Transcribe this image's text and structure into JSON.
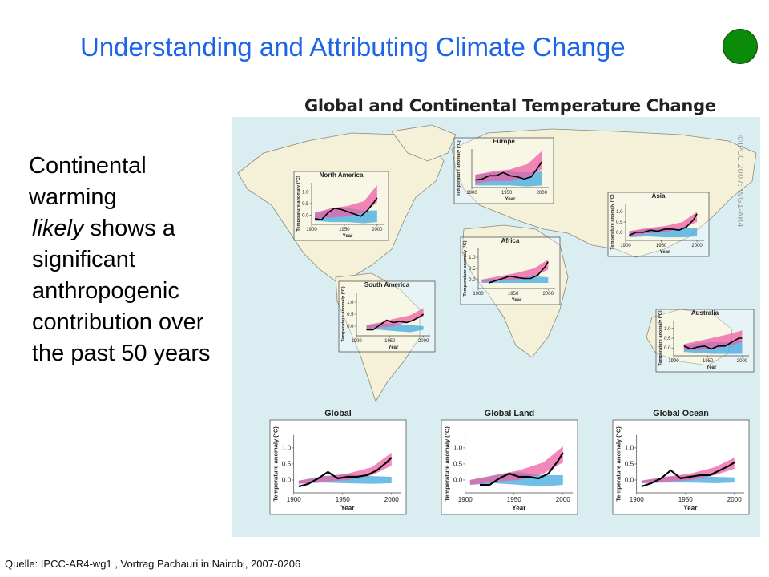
{
  "slide": {
    "title": "Understanding and Attributing Climate Change",
    "bullet_line1": "Continental warming",
    "bullet_emph": "likely",
    "bullet_rest": " shows a significant anthropogenic contribution over the past 50 years",
    "source": "Quelle:  IPCC-AR4-wg1 , Vortrag Pachauri  in Nairobi, 2007-0206",
    "status_color": "#0a8c0a"
  },
  "figure": {
    "title": "Global and Continental Temperature Change",
    "watermark": "©IPCC 2007: WG1-AR4",
    "colors": {
      "ocean": "#daeef2",
      "land": "#f4f1d8",
      "natural_band": "#3fa8e0",
      "anthropogenic_band": "#ee5fa4",
      "observed": "#000000"
    }
  },
  "chart_data": [
    {
      "type": "line",
      "title": "North America",
      "ylabel": "Temperature anomaly (°C)",
      "xlabel": "Year",
      "xticks": [
        "1900",
        "1950",
        "2000"
      ],
      "yticks": [
        "0.0",
        "0.5",
        "1.0"
      ],
      "xlim": [
        1900,
        2010
      ],
      "ylim": [
        -0.4,
        1.4
      ],
      "observed": {
        "x": [
          1905,
          1915,
          1925,
          1935,
          1945,
          1955,
          1965,
          1975,
          1985,
          1995,
          2000
        ],
        "y": [
          -0.15,
          -0.2,
          0.1,
          0.3,
          0.25,
          0.15,
          0.05,
          -0.05,
          0.2,
          0.55,
          0.75
        ]
      },
      "anthro_band": {
        "x": [
          1905,
          1930,
          1955,
          1980,
          2000
        ],
        "low": [
          -0.15,
          -0.1,
          -0.05,
          0.1,
          0.55
        ],
        "high": [
          0.1,
          0.3,
          0.4,
          0.6,
          1.3
        ]
      },
      "natural_band": {
        "x": [
          1905,
          1930,
          1955,
          1980,
          2000
        ],
        "low": [
          -0.25,
          -0.3,
          -0.3,
          -0.35,
          -0.3
        ],
        "high": [
          0.1,
          0.25,
          0.3,
          0.2,
          0.2
        ]
      }
    },
    {
      "type": "line",
      "title": "Europe",
      "ylabel": "Temperature anomaly (°C)",
      "xlabel": "Year",
      "xticks": [
        "1900",
        "1950",
        "2000"
      ],
      "yticks": [],
      "xlim": [
        1900,
        2010
      ],
      "ylim": [
        -0.4,
        1.4
      ],
      "observed": {
        "x": [
          1905,
          1915,
          1925,
          1935,
          1945,
          1955,
          1965,
          1975,
          1985,
          1995,
          2000
        ],
        "y": [
          -0.05,
          0.0,
          0.15,
          0.15,
          0.3,
          0.15,
          0.1,
          0.0,
          0.1,
          0.55,
          0.8
        ]
      },
      "anthro_band": {
        "x": [
          1905,
          1930,
          1955,
          1980,
          2000
        ],
        "low": [
          -0.2,
          -0.1,
          -0.1,
          0.1,
          0.45
        ],
        "high": [
          0.2,
          0.35,
          0.45,
          0.7,
          1.3
        ]
      },
      "natural_band": {
        "x": [
          1905,
          1930,
          1955,
          1980,
          2000
        ],
        "low": [
          -0.3,
          -0.3,
          -0.3,
          -0.35,
          -0.3
        ],
        "high": [
          0.2,
          0.3,
          0.35,
          0.3,
          0.35
        ]
      }
    },
    {
      "type": "line",
      "title": "Asia",
      "ylabel": "Temperature anomaly (°C)",
      "xlabel": "Year",
      "xticks": [
        "1900",
        "1950",
        "2000"
      ],
      "yticks": [
        "0.0",
        "0.5",
        "1.0"
      ],
      "xlim": [
        1900,
        2010
      ],
      "ylim": [
        -0.4,
        1.4
      ],
      "observed": {
        "x": [
          1905,
          1915,
          1925,
          1935,
          1945,
          1955,
          1965,
          1975,
          1985,
          1995,
          2000
        ],
        "y": [
          -0.15,
          0.0,
          0.0,
          0.1,
          0.05,
          0.15,
          0.15,
          0.1,
          0.25,
          0.6,
          0.9
        ]
      },
      "anthro_band": {
        "x": [
          1905,
          1930,
          1955,
          1980,
          2000
        ],
        "low": [
          -0.2,
          -0.05,
          0.0,
          0.2,
          0.5
        ],
        "high": [
          0.05,
          0.2,
          0.3,
          0.5,
          1.0
        ]
      },
      "natural_band": {
        "x": [
          1905,
          1930,
          1955,
          1980,
          2000
        ],
        "low": [
          -0.25,
          -0.2,
          -0.25,
          -0.25,
          -0.2
        ],
        "high": [
          0.05,
          0.15,
          0.2,
          0.2,
          0.2
        ]
      }
    },
    {
      "type": "line",
      "title": "Africa",
      "ylabel": "Temperature anomaly (°C)",
      "xlabel": "Year",
      "xticks": [
        "1900",
        "1950",
        "2000"
      ],
      "yticks": [
        "0.0",
        "0.5",
        "1.0"
      ],
      "xlim": [
        1900,
        2010
      ],
      "ylim": [
        -0.4,
        1.4
      ],
      "observed": {
        "x": [
          1915,
          1925,
          1935,
          1945,
          1955,
          1965,
          1975,
          1985,
          1995,
          2000
        ],
        "y": [
          -0.15,
          -0.05,
          0.05,
          0.15,
          0.1,
          0.05,
          0.05,
          0.2,
          0.55,
          0.8
        ]
      },
      "anthro_band": {
        "x": [
          1905,
          1930,
          1955,
          1980,
          2000
        ],
        "low": [
          -0.1,
          -0.05,
          0.0,
          0.15,
          0.45
        ],
        "high": [
          0.0,
          0.15,
          0.3,
          0.5,
          0.9
        ]
      },
      "natural_band": {
        "x": [
          1905,
          1930,
          1955,
          1980,
          2000
        ],
        "low": [
          -0.15,
          -0.15,
          -0.15,
          -0.15,
          -0.15
        ],
        "high": [
          0.0,
          0.05,
          0.1,
          0.15,
          0.1
        ]
      }
    },
    {
      "type": "line",
      "title": "South America",
      "ylabel": "Temperature anomaly (°C)",
      "xlabel": "Year",
      "xticks": [
        "1900",
        "1950",
        "2000"
      ],
      "yticks": [
        "0.0",
        "0.5",
        "1.0"
      ],
      "xlim": [
        1900,
        2010
      ],
      "ylim": [
        -0.4,
        1.4
      ],
      "observed": {
        "x": [
          1915,
          1925,
          1935,
          1945,
          1955,
          1965,
          1975,
          1985,
          1995,
          2000
        ],
        "y": [
          -0.15,
          -0.15,
          0.05,
          0.25,
          0.15,
          0.2,
          0.15,
          0.25,
          0.4,
          0.5
        ]
      },
      "anthro_band": {
        "x": [
          1915,
          1935,
          1955,
          1980,
          2000
        ],
        "low": [
          -0.1,
          -0.05,
          0.0,
          0.2,
          0.4
        ],
        "high": [
          0.05,
          0.15,
          0.3,
          0.45,
          0.75
        ]
      },
      "natural_band": {
        "x": [
          1915,
          1935,
          1955,
          1980,
          2000
        ],
        "low": [
          -0.1,
          -0.15,
          -0.2,
          -0.25,
          -0.15
        ],
        "high": [
          0.05,
          0.1,
          0.1,
          0.05,
          0.0
        ]
      }
    },
    {
      "type": "line",
      "title": "Australia",
      "ylabel": "Temperature anomaly (°C)",
      "xlabel": "Year",
      "xticks": [
        "1900",
        "1950",
        "2000"
      ],
      "yticks": [
        "0.0",
        "0.5",
        "1.0"
      ],
      "xlim": [
        1900,
        2010
      ],
      "ylim": [
        -0.4,
        1.4
      ],
      "observed": {
        "x": [
          1915,
          1925,
          1935,
          1945,
          1955,
          1965,
          1975,
          1985,
          1995,
          2000
        ],
        "y": [
          0.1,
          -0.05,
          0.05,
          0.1,
          -0.05,
          0.1,
          0.1,
          0.3,
          0.5,
          0.5
        ]
      },
      "anthro_band": {
        "x": [
          1915,
          1935,
          1955,
          1980,
          2000
        ],
        "low": [
          -0.1,
          -0.1,
          -0.05,
          0.1,
          0.3
        ],
        "high": [
          0.2,
          0.35,
          0.5,
          0.7,
          0.9
        ]
      },
      "natural_band": {
        "x": [
          1915,
          1935,
          1955,
          1980,
          2000
        ],
        "low": [
          -0.2,
          -0.25,
          -0.3,
          -0.3,
          -0.3
        ],
        "high": [
          0.1,
          0.25,
          0.3,
          0.3,
          0.35
        ]
      }
    },
    {
      "type": "line",
      "title": "Global",
      "ylabel": "Temperature anomaly (°C)",
      "xlabel": "Year",
      "xticks": [
        "1900",
        "1950",
        "2000"
      ],
      "yticks": [
        "0.0",
        "0.5",
        "1.0"
      ],
      "xlim": [
        1900,
        2010
      ],
      "ylim": [
        -0.4,
        1.4
      ],
      "observed": {
        "x": [
          1905,
          1915,
          1925,
          1935,
          1945,
          1955,
          1965,
          1975,
          1985,
          1995,
          2000
        ],
        "y": [
          -0.2,
          -0.12,
          0.05,
          0.25,
          0.05,
          0.1,
          0.1,
          0.15,
          0.3,
          0.55,
          0.7
        ]
      },
      "anthro_band": {
        "x": [
          1905,
          1930,
          1955,
          1980,
          2000
        ],
        "low": [
          -0.12,
          -0.05,
          0.0,
          0.15,
          0.45
        ],
        "high": [
          -0.02,
          0.1,
          0.2,
          0.4,
          0.85
        ]
      },
      "natural_band": {
        "x": [
          1905,
          1930,
          1955,
          1980,
          2000
        ],
        "low": [
          -0.12,
          -0.08,
          -0.1,
          -0.12,
          -0.1
        ],
        "high": [
          -0.02,
          0.12,
          0.18,
          0.12,
          0.1
        ]
      }
    },
    {
      "type": "line",
      "title": "Global Land",
      "ylabel": "Temperature anomaly (°C)",
      "xlabel": "Year",
      "xticks": [
        "1900",
        "1950",
        "2000"
      ],
      "yticks": [
        "0.0",
        "0.5",
        "1.0"
      ],
      "xlim": [
        1900,
        2010
      ],
      "ylim": [
        -0.4,
        1.4
      ],
      "observed": {
        "x": [
          1915,
          1925,
          1935,
          1945,
          1955,
          1965,
          1975,
          1985,
          1995,
          2000
        ],
        "y": [
          -0.15,
          -0.15,
          0.05,
          0.2,
          0.1,
          0.1,
          0.05,
          0.2,
          0.6,
          0.85
        ]
      },
      "anthro_band": {
        "x": [
          1905,
          1930,
          1955,
          1980,
          2000
        ],
        "low": [
          -0.15,
          -0.05,
          0.0,
          0.2,
          0.55
        ],
        "high": [
          0.0,
          0.15,
          0.3,
          0.55,
          1.05
        ]
      },
      "natural_band": {
        "x": [
          1905,
          1930,
          1955,
          1980,
          2000
        ],
        "low": [
          -0.15,
          -0.1,
          -0.15,
          -0.2,
          -0.15
        ],
        "high": [
          0.0,
          0.15,
          0.25,
          0.15,
          0.15
        ]
      }
    },
    {
      "type": "line",
      "title": "Global Ocean",
      "ylabel": "Temperature anomaly (°C)",
      "xlabel": "Year",
      "xticks": [
        "1900",
        "1950",
        "2000"
      ],
      "yticks": [
        "0.0",
        "0.5",
        "1.0"
      ],
      "xlim": [
        1900,
        2010
      ],
      "ylim": [
        -0.4,
        1.4
      ],
      "observed": {
        "x": [
          1905,
          1915,
          1925,
          1935,
          1945,
          1955,
          1965,
          1975,
          1985,
          1995,
          2000
        ],
        "y": [
          -0.2,
          -0.1,
          0.05,
          0.3,
          0.05,
          0.1,
          0.15,
          0.15,
          0.3,
          0.45,
          0.55
        ]
      },
      "anthro_band": {
        "x": [
          1905,
          1930,
          1955,
          1980,
          2000
        ],
        "low": [
          -0.1,
          -0.05,
          0.0,
          0.15,
          0.35
        ],
        "high": [
          -0.02,
          0.1,
          0.2,
          0.4,
          0.7
        ]
      },
      "natural_band": {
        "x": [
          1905,
          1930,
          1955,
          1980,
          2000
        ],
        "low": [
          -0.1,
          -0.08,
          -0.08,
          -0.1,
          -0.08
        ],
        "high": [
          -0.02,
          0.1,
          0.15,
          0.1,
          0.08
        ]
      }
    }
  ]
}
